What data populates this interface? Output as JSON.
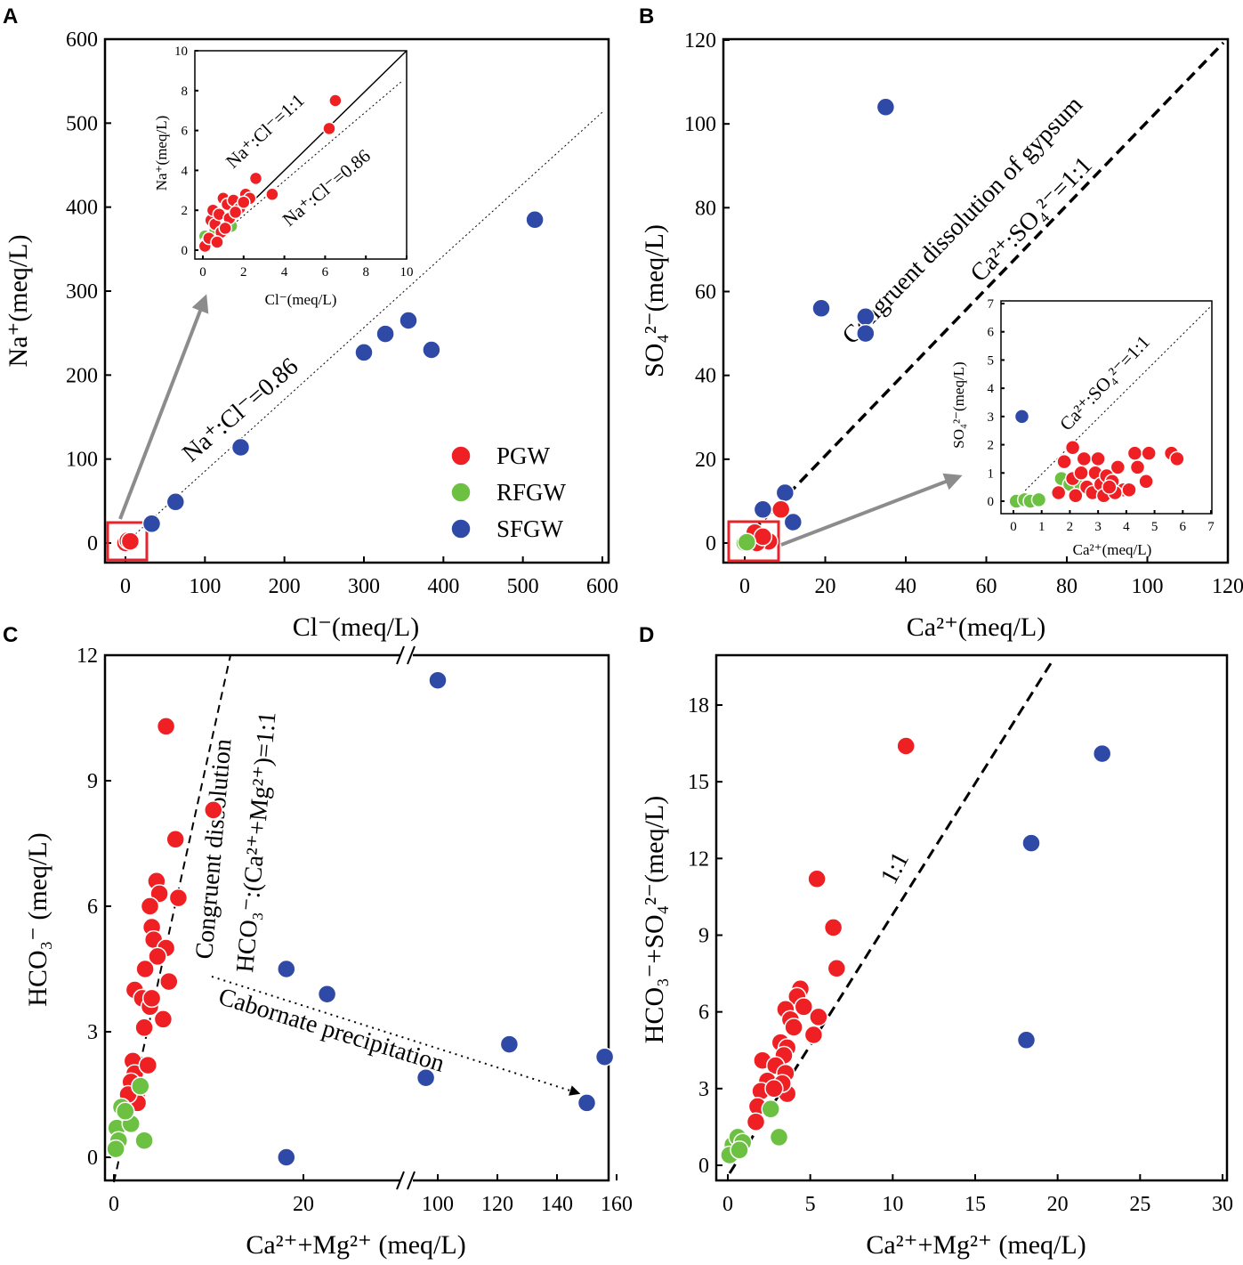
{
  "colors": {
    "PGW": "#ee2024",
    "RFGW": "#6cc042",
    "SFGW": "#2f4aa6",
    "arrow": "#8c8c8c",
    "box": "#e5252b"
  },
  "legend": [
    {
      "key": "PGW",
      "label": "PGW"
    },
    {
      "key": "RFGW",
      "label": "RFGW"
    },
    {
      "key": "SFGW",
      "label": "SFGW"
    }
  ],
  "panels": {
    "A": "A",
    "B": "B",
    "C": "C",
    "D": "D"
  },
  "chart_data": [
    {
      "id": "A",
      "type": "scatter",
      "xlabel": "Cl⁻(meq/L)",
      "ylabel": "Na⁺(meq/L)",
      "xlim": [
        -20,
        600
      ],
      "ylim": [
        -20,
        600
      ],
      "xticks": [
        "0",
        "100",
        "200",
        "300",
        "400",
        "500",
        "600"
      ],
      "yticks": [
        "0",
        "100",
        "200",
        "300",
        "400",
        "500",
        "600"
      ],
      "annotations": {
        "ratio": "Na⁺:Cl⁻=0.86"
      },
      "ref_line_slope": 0.86,
      "series": [
        {
          "name": "SFGW",
          "points": [
            [
              33,
              23
            ],
            [
              63,
              49
            ],
            [
              145,
              114
            ],
            [
              300,
              227
            ],
            [
              327,
              249
            ],
            [
              356,
              265
            ],
            [
              385,
              230
            ],
            [
              515,
              385
            ]
          ]
        },
        {
          "name": "PGW",
          "points": [
            [
              0,
              0
            ],
            [
              3,
              3
            ],
            [
              6,
              2
            ]
          ]
        }
      ],
      "inset": {
        "xlabel": "Cl⁻(meq/L)",
        "ylabel": "Na⁺(meq/L)",
        "xlim": [
          -0.4,
          10
        ],
        "ylim": [
          -0.4,
          10
        ],
        "xticks": [
          "0",
          "2",
          "4",
          "6",
          "8",
          "10"
        ],
        "yticks": [
          "0",
          "2",
          "4",
          "6",
          "8",
          "10"
        ],
        "annotations": {
          "ratio11": "Na⁺:Cl⁻=1:1",
          "ratio086": "Na⁺:Cl⁻=0.86"
        },
        "series": [
          {
            "name": "RFGW",
            "points": [
              [
                0.1,
                0.7
              ],
              [
                0.4,
                0.6
              ],
              [
                0.6,
                1.0
              ],
              [
                1.4,
                1.2
              ],
              [
                0.2,
                0.4
              ]
            ]
          },
          {
            "name": "PGW",
            "points": [
              [
                0.1,
                0.2
              ],
              [
                0.3,
                0.6
              ],
              [
                0.4,
                1.5
              ],
              [
                0.5,
                2.0
              ],
              [
                0.6,
                1.3
              ],
              [
                0.8,
                1.8
              ],
              [
                1.0,
                2.6
              ],
              [
                1.2,
                2.3
              ],
              [
                1.3,
                1.6
              ],
              [
                1.5,
                2.5
              ],
              [
                1.8,
                2.1
              ],
              [
                2.1,
                2.8
              ],
              [
                2.3,
                2.6
              ],
              [
                2.6,
                3.6
              ],
              [
                3.4,
                2.8
              ],
              [
                0.9,
                0.9
              ],
              [
                1.6,
                1.9
              ],
              [
                6.2,
                6.1
              ],
              [
                6.5,
                7.5
              ],
              [
                0.7,
                0.4
              ],
              [
                1.1,
                1.1
              ],
              [
                2.0,
                2.4
              ]
            ]
          }
        ]
      }
    },
    {
      "id": "B",
      "type": "scatter",
      "xlabel": "Ca²⁺(meq/L)",
      "ylabel": "SO₄²⁻(meq/L)",
      "xlim": [
        -4,
        120
      ],
      "ylim": [
        -4,
        120
      ],
      "xticks": [
        "0",
        "20",
        "40",
        "60",
        "80",
        "100",
        "120"
      ],
      "yticks": [
        "0",
        "20",
        "40",
        "60",
        "80",
        "100",
        "120"
      ],
      "annotations": {
        "gypsum": "Congruent dissolution of gypsum",
        "ratio": "Ca²⁺:SO₄²⁻=1:1"
      },
      "series": [
        {
          "name": "SFGW",
          "points": [
            [
              35,
              104
            ],
            [
              19,
              56
            ],
            [
              30,
              54
            ],
            [
              30,
              50
            ],
            [
              4.5,
              8
            ],
            [
              10,
              12
            ],
            [
              12,
              5
            ]
          ]
        },
        {
          "name": "PGW",
          "points": [
            [
              1,
              0.5
            ],
            [
              2,
              1
            ],
            [
              3,
              1.5
            ],
            [
              4,
              0.5
            ],
            [
              5,
              1
            ],
            [
              6,
              0.4
            ],
            [
              9,
              8
            ],
            [
              3,
              0
            ],
            [
              2.5,
              2.5
            ],
            [
              4.5,
              1.5
            ]
          ]
        },
        {
          "name": "RFGW",
          "points": [
            [
              0,
              0
            ],
            [
              0.5,
              0.2
            ]
          ]
        }
      ],
      "inset": {
        "xlabel": "Ca²⁺(meq/L)",
        "ylabel": "SO₄²⁻(meq/L)",
        "xlim": [
          -0.2,
          7
        ],
        "ylim": [
          -0.2,
          7
        ],
        "xticks": [
          "0",
          "1",
          "2",
          "3",
          "4",
          "5",
          "6",
          "7"
        ],
        "yticks": [
          "0",
          "1",
          "2",
          "3",
          "4",
          "5",
          "6",
          "7"
        ],
        "annotations": {
          "ratio": "Ca²⁺:SO₄²⁻=1:1"
        },
        "series": [
          {
            "name": "SFGW",
            "points": [
              [
                0.3,
                3.0
              ]
            ]
          },
          {
            "name": "RFGW",
            "points": [
              [
                0.1,
                0.0
              ],
              [
                0.4,
                0.05
              ],
              [
                0.6,
                0.0
              ],
              [
                0.9,
                0.05
              ],
              [
                1.7,
                0.8
              ],
              [
                2.0,
                0.6
              ],
              [
                2.4,
                0.5
              ]
            ]
          },
          {
            "name": "PGW",
            "points": [
              [
                1.6,
                0.3
              ],
              [
                1.8,
                1.4
              ],
              [
                2.1,
                1.9
              ],
              [
                2.2,
                0.2
              ],
              [
                2.1,
                0.8
              ],
              [
                2.5,
                1.5
              ],
              [
                2.6,
                0.5
              ],
              [
                2.8,
                0.3
              ],
              [
                2.9,
                1.0
              ],
              [
                3.0,
                1.5
              ],
              [
                3.1,
                0.6
              ],
              [
                3.2,
                0.2
              ],
              [
                3.3,
                0.9
              ],
              [
                3.5,
                0.7
              ],
              [
                3.7,
                1.2
              ],
              [
                3.9,
                0.4
              ],
              [
                4.3,
                1.7
              ],
              [
                4.4,
                1.2
              ],
              [
                4.7,
                0.7
              ],
              [
                4.8,
                1.7
              ],
              [
                5.6,
                1.7
              ],
              [
                5.8,
                1.5
              ],
              [
                3.6,
                0.3
              ],
              [
                4.1,
                0.4
              ],
              [
                2.4,
                1.0
              ],
              [
                3.4,
                0.5
              ]
            ]
          }
        ]
      }
    },
    {
      "id": "C",
      "type": "scatter",
      "xlabel": "Ca²⁺+Mg²⁺ (meq/L)",
      "ylabel": "HCO₃⁻ (meq/L)",
      "xlim": [
        -0.5,
        160
      ],
      "ylim": [
        -0.6,
        12
      ],
      "x_break": "broken axis 0–30 | 90–160",
      "xticks": [
        "0",
        "20",
        "100",
        "120",
        "140",
        "160"
      ],
      "yticks": [
        "0",
        "3",
        "6",
        "9",
        "12"
      ],
      "annotations": {
        "congruent": "Congruent dissolution",
        "ratio": "HCO₃⁻:(Ca²⁺+Mg²⁺)=1:1",
        "carbonate": "Cabornate precipitation"
      },
      "series": [
        {
          "name": "PGW",
          "points": [
            [
              5.5,
              10.3
            ],
            [
              10.5,
              8.3
            ],
            [
              6.5,
              7.6
            ],
            [
              6.8,
              6.2
            ],
            [
              4.5,
              6.6
            ],
            [
              4.8,
              6.3
            ],
            [
              3.8,
              6.0
            ],
            [
              4.0,
              5.5
            ],
            [
              4.2,
              5.2
            ],
            [
              5.5,
              5.0
            ],
            [
              4.6,
              4.8
            ],
            [
              3.3,
              4.5
            ],
            [
              2.2,
              4.0
            ],
            [
              3.0,
              3.8
            ],
            [
              3.8,
              3.6
            ],
            [
              5.8,
              4.2
            ],
            [
              5.2,
              3.3
            ],
            [
              3.2,
              3.1
            ],
            [
              2.0,
              2.3
            ],
            [
              2.2,
              2.0
            ],
            [
              3.6,
              2.2
            ],
            [
              1.8,
              1.8
            ],
            [
              2.4,
              1.5
            ],
            [
              2.5,
              1.3
            ],
            [
              1.5,
              1.5
            ],
            [
              4.0,
              3.8
            ]
          ]
        },
        {
          "name": "RFGW",
          "points": [
            [
              0.3,
              0.7
            ],
            [
              0.8,
              1.2
            ],
            [
              1.8,
              0.8
            ],
            [
              3.2,
              0.4
            ],
            [
              0.5,
              0.4
            ],
            [
              0.2,
              0.2
            ],
            [
              1.2,
              1.1
            ],
            [
              2.8,
              1.7
            ]
          ]
        },
        {
          "name": "SFGW",
          "points": [
            [
              100,
              11.4
            ],
            [
              18.2,
              4.5
            ],
            [
              22.5,
              3.9
            ],
            [
              18.2,
              0.0
            ],
            [
              96,
              1.9
            ],
            [
              124,
              2.7
            ],
            [
              150,
              1.3
            ],
            [
              156,
              2.4
            ]
          ]
        }
      ]
    },
    {
      "id": "D",
      "type": "scatter",
      "xlabel": "Ca²⁺+Mg²⁺ (meq/L)",
      "ylabel": "HCO₃⁻+SO₄²⁻(meq/L)",
      "xlim": [
        -0.5,
        30
      ],
      "ylim": [
        -0.5,
        19.5
      ],
      "xticks": [
        "0",
        "5",
        "10",
        "15",
        "20",
        "25",
        "30"
      ],
      "yticks": [
        "0",
        "3",
        "6",
        "9",
        "12",
        "15",
        "18"
      ],
      "annotations": {
        "ratio": "1:1"
      },
      "series": [
        {
          "name": "PGW",
          "points": [
            [
              10.8,
              16.4
            ],
            [
              5.4,
              11.2
            ],
            [
              6.4,
              9.3
            ],
            [
              6.6,
              7.7
            ],
            [
              4.4,
              6.9
            ],
            [
              4.2,
              6.6
            ],
            [
              4.6,
              6.2
            ],
            [
              3.5,
              6.1
            ],
            [
              3.8,
              5.7
            ],
            [
              5.5,
              5.8
            ],
            [
              4.0,
              5.4
            ],
            [
              5.2,
              5.1
            ],
            [
              3.2,
              4.8
            ],
            [
              3.6,
              4.6
            ],
            [
              3.4,
              4.3
            ],
            [
              2.1,
              4.1
            ],
            [
              2.9,
              3.9
            ],
            [
              3.5,
              3.6
            ],
            [
              2.4,
              3.3
            ],
            [
              2.0,
              2.9
            ],
            [
              3.6,
              2.8
            ],
            [
              3.3,
              3.2
            ],
            [
              1.8,
              2.3
            ],
            [
              1.7,
              1.7
            ],
            [
              2.8,
              3.0
            ]
          ]
        },
        {
          "name": "RFGW",
          "points": [
            [
              2.6,
              2.2
            ],
            [
              3.1,
              1.1
            ],
            [
              0.3,
              0.8
            ],
            [
              0.6,
              1.1
            ],
            [
              0.9,
              0.9
            ],
            [
              0.1,
              0.4
            ],
            [
              0.7,
              0.6
            ]
          ]
        },
        {
          "name": "SFGW",
          "points": [
            [
              22.7,
              16.1
            ],
            [
              18.4,
              12.6
            ],
            [
              18.1,
              4.9
            ]
          ]
        }
      ]
    }
  ]
}
